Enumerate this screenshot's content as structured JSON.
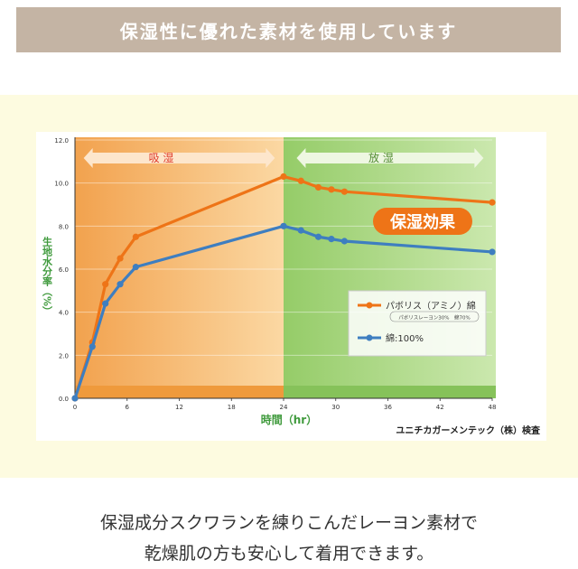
{
  "banner": {
    "title": "保湿性に優れた素材を使用しています"
  },
  "chart_data": {
    "type": "line",
    "title": "",
    "xlabel": "時間（hr）",
    "ylabel": "生地水分率（%）",
    "xlim": [
      0,
      48
    ],
    "ylim": [
      0,
      12
    ],
    "xticks": [
      0,
      6,
      12,
      18,
      24,
      30,
      36,
      42,
      48
    ],
    "yticks": [
      0.0,
      2.0,
      4.0,
      6.0,
      8.0,
      10.0,
      12.0
    ],
    "ytick_labels": [
      "0.0",
      "2.0",
      "4.0",
      "6.0",
      "8.0",
      "10.0",
      "12.0"
    ],
    "phases": [
      {
        "label": "吸 湿",
        "x_start": 0,
        "x_end": 24,
        "color": "#f3b36a"
      },
      {
        "label": "放 湿",
        "x_start": 24,
        "x_end": 48,
        "color": "#a9d77f"
      }
    ],
    "annotation": "保湿効果",
    "source": "ユニチカガーメンテック（株）検査",
    "series": [
      {
        "name": "パボリス（アミノ）綿",
        "sub_label": "パボリスレーヨン30%　綿70%",
        "color": "#ee7417",
        "points": [
          [
            0,
            0
          ],
          [
            2,
            2.6
          ],
          [
            3.5,
            5.3
          ],
          [
            5.2,
            6.5
          ],
          [
            7,
            7.5
          ],
          [
            24,
            10.3
          ],
          [
            26,
            10.1
          ],
          [
            28,
            9.8
          ],
          [
            29.5,
            9.7
          ],
          [
            31,
            9.6
          ],
          [
            48,
            9.1
          ]
        ]
      },
      {
        "name": "綿:100%",
        "sub_label": "",
        "color": "#3e7ec0",
        "points": [
          [
            0,
            0
          ],
          [
            2,
            2.4
          ],
          [
            3.5,
            4.4
          ],
          [
            5.2,
            5.3
          ],
          [
            7,
            6.1
          ],
          [
            24,
            8.0
          ],
          [
            26,
            7.8
          ],
          [
            28,
            7.5
          ],
          [
            29.5,
            7.4
          ],
          [
            31,
            7.3
          ],
          [
            48,
            6.8
          ]
        ]
      }
    ]
  },
  "caption": {
    "line1": "保湿成分スクワランを練りこんだレーヨン素材で",
    "line2": "乾燥肌の方も安心して着用できます。"
  }
}
